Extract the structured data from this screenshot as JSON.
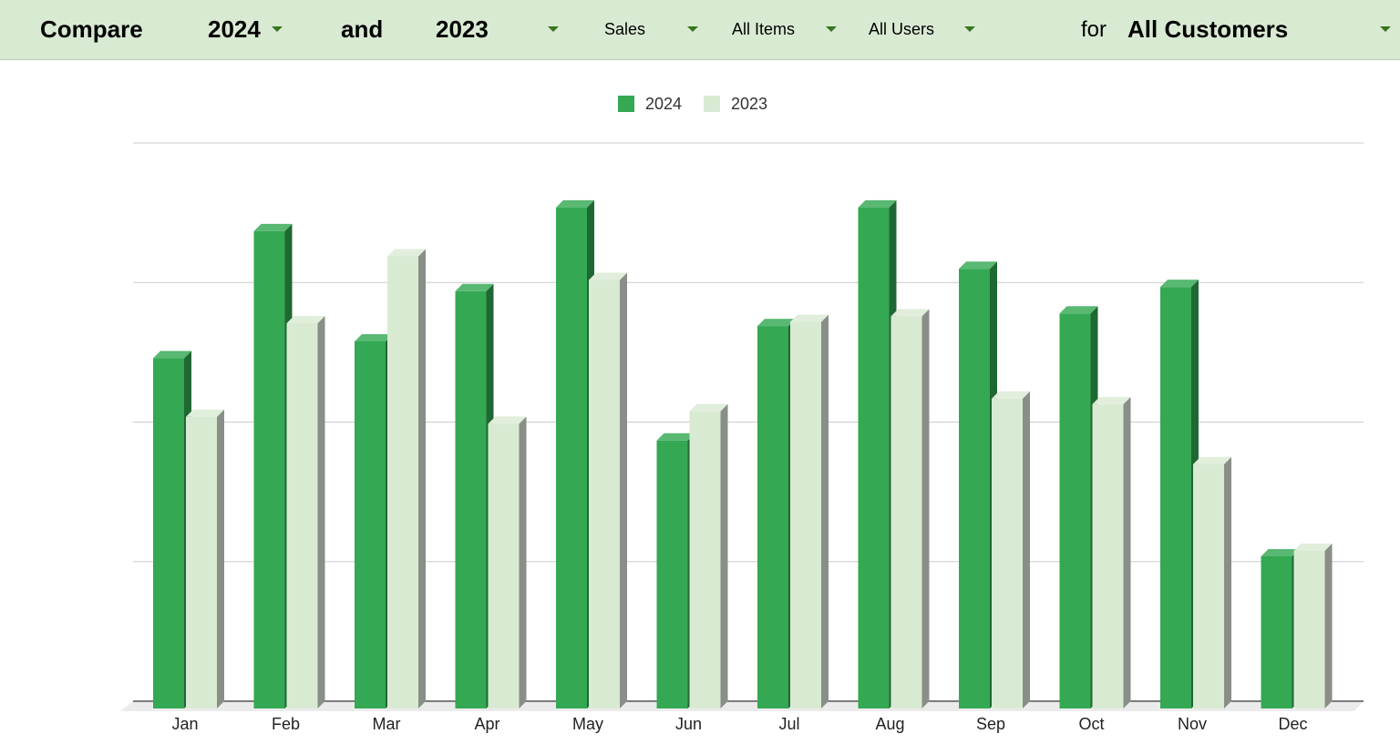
{
  "controls": {
    "compare_label": "Compare",
    "year_a": "2024",
    "and_label": "and",
    "year_b": "2023",
    "metric": "Sales",
    "items": "All Items",
    "users": "All Users",
    "for_label": "for",
    "customers": "All Customers"
  },
  "colors": {
    "series_2024": "#34a853",
    "series_2023": "#d9ead3",
    "toolbar_bg": "#d9ead3",
    "caret": "#38761d"
  },
  "chart_data": {
    "type": "bar",
    "style": "3d-clustered",
    "categories": [
      "Jan",
      "Feb",
      "Mar",
      "Apr",
      "May",
      "Jun",
      "Jul",
      "Aug",
      "Sep",
      "Oct",
      "Nov",
      "Dec"
    ],
    "series": [
      {
        "name": "2024",
        "values": [
          2.51,
          3.42,
          2.63,
          2.99,
          3.59,
          1.92,
          2.74,
          3.59,
          3.15,
          2.83,
          3.02,
          1.09
        ]
      },
      {
        "name": "2023",
        "values": [
          2.09,
          2.76,
          3.24,
          2.04,
          3.07,
          2.13,
          2.77,
          2.81,
          2.22,
          2.18,
          1.75,
          1.13
        ]
      }
    ],
    "ylim": [
      0,
      4
    ],
    "grid": true,
    "y_tick_labels_visible": false,
    "legend_position": "top"
  }
}
